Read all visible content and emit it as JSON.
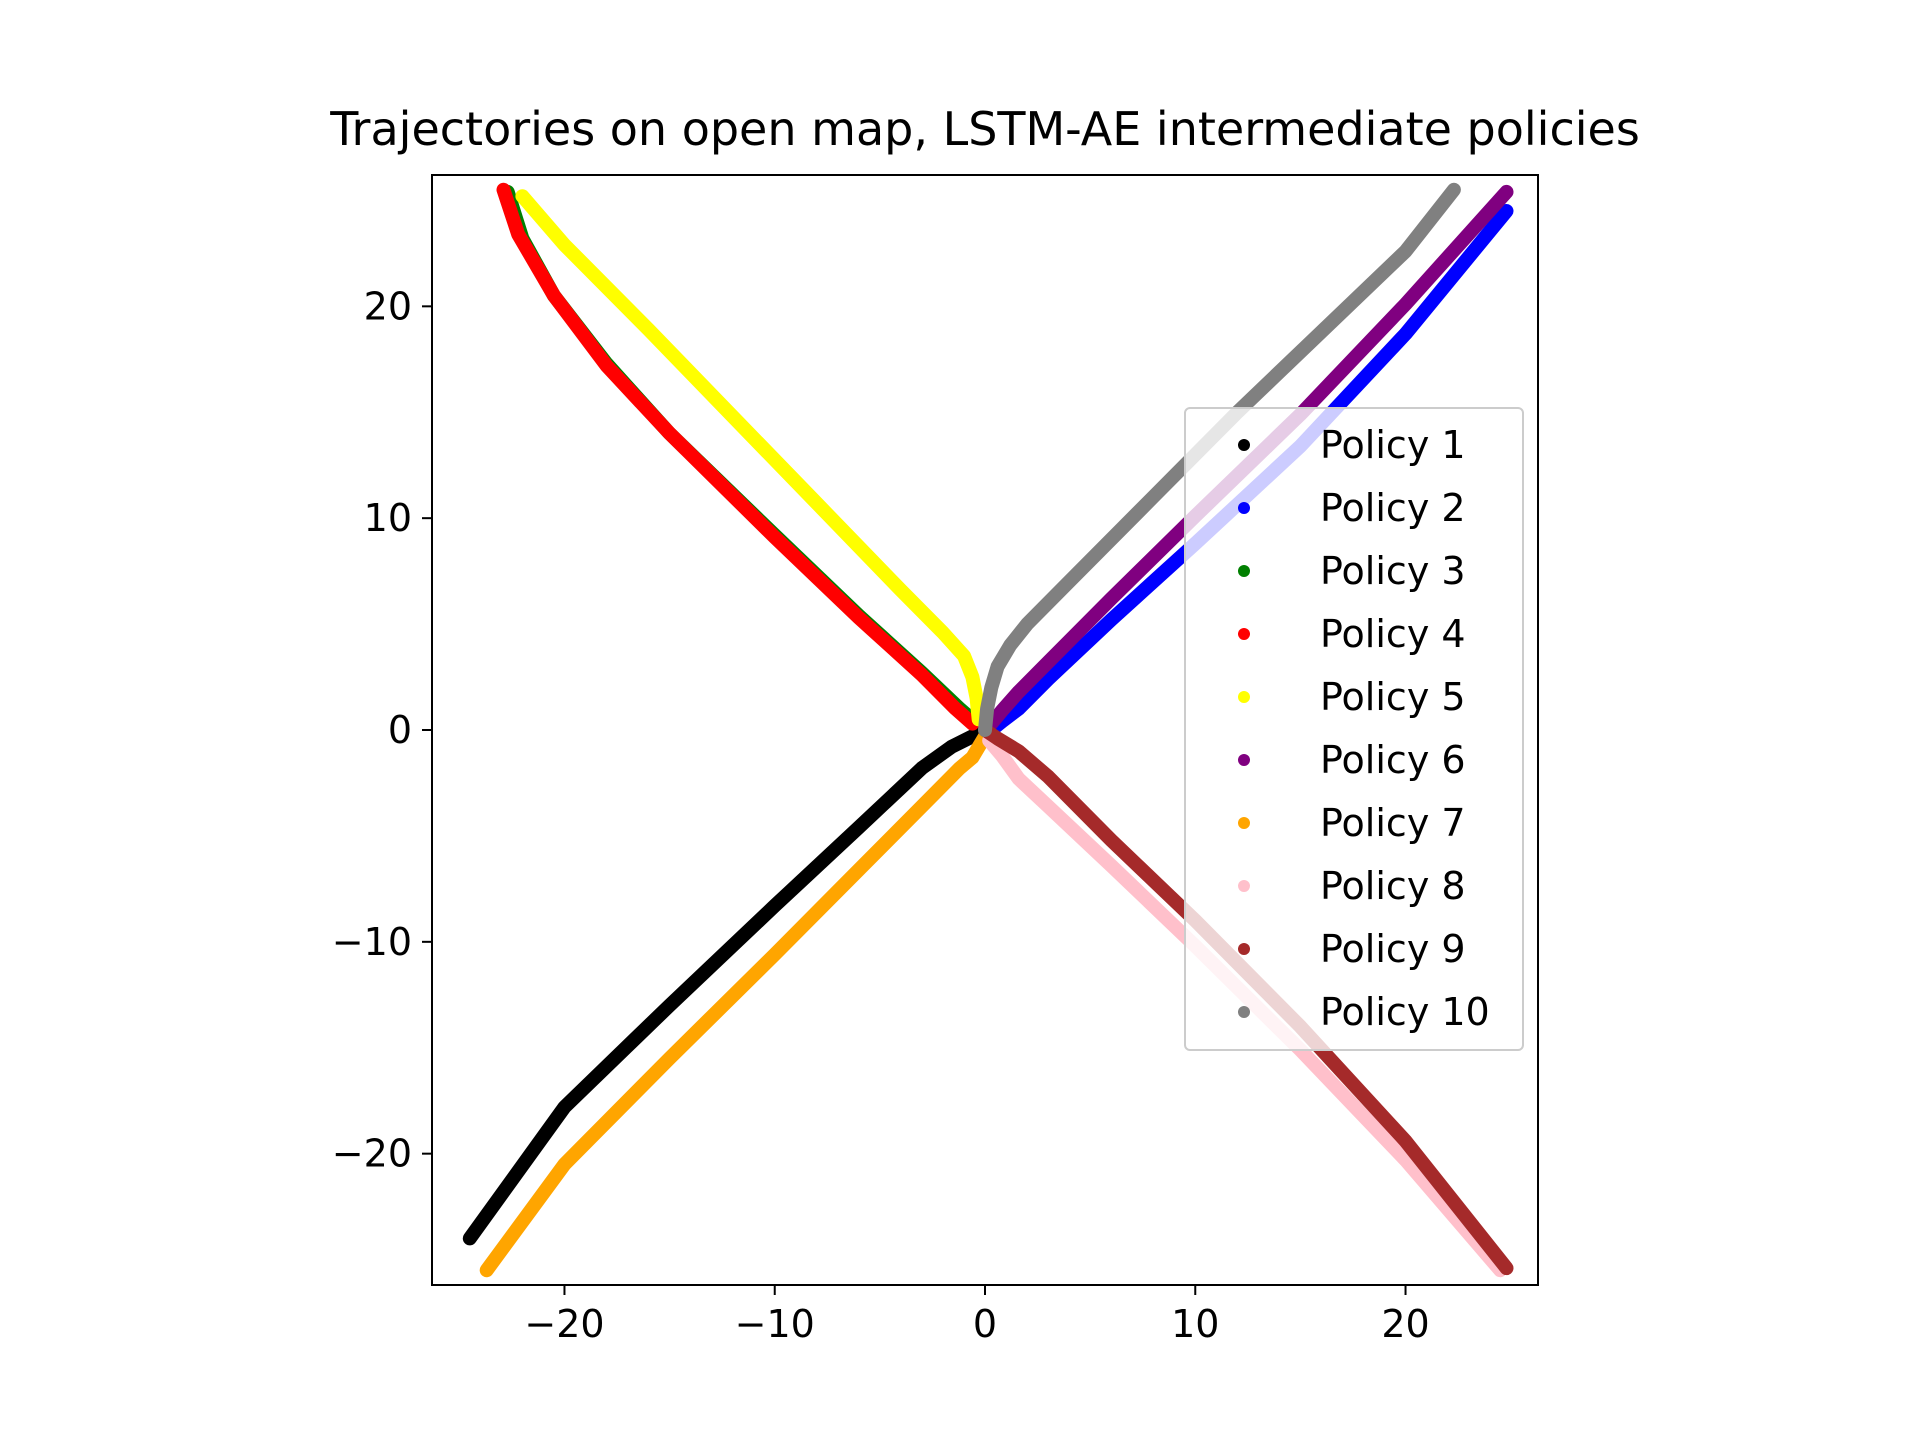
{
  "chart_data": {
    "type": "scatter",
    "title": "Trajectories on open map, LSTM-AE intermediate policies",
    "xlabel": "",
    "ylabel": "",
    "xlim": [
      -26.3,
      26.3
    ],
    "ylim": [
      -26.2,
      26.2
    ],
    "xticks": [
      -20,
      -10,
      0,
      10,
      20
    ],
    "yticks": [
      -20,
      -10,
      0,
      10,
      20
    ],
    "xtick_labels": [
      "−20",
      "−10",
      "0",
      "10",
      "20"
    ],
    "ytick_labels": [
      "−20",
      "−10",
      "0",
      "10",
      "20"
    ],
    "grid": false,
    "legend_position": "center-right",
    "series": [
      {
        "name": "Policy 1",
        "color": "#000000",
        "points": [
          [
            0,
            0
          ],
          [
            -0.6,
            -0.3
          ],
          [
            -1.6,
            -0.8
          ],
          [
            -3.0,
            -1.8
          ],
          [
            -6.0,
            -4.6
          ],
          [
            -10.0,
            -8.3
          ],
          [
            -15.0,
            -13.0
          ],
          [
            -20.0,
            -17.8
          ],
          [
            -24.5,
            -24.0
          ]
        ]
      },
      {
        "name": "Policy 2",
        "color": "#0000ff",
        "points": [
          [
            0.3,
            0
          ],
          [
            0.8,
            0.4
          ],
          [
            1.6,
            1.0
          ],
          [
            3.0,
            2.4
          ],
          [
            6.0,
            5.2
          ],
          [
            10.0,
            8.8
          ],
          [
            15.0,
            13.4
          ],
          [
            20.0,
            18.7
          ],
          [
            24.8,
            24.5
          ]
        ]
      },
      {
        "name": "Policy 3",
        "color": "#008000",
        "points": [
          [
            -0.5,
            0.4
          ],
          [
            -1.2,
            1.0
          ],
          [
            -3.0,
            2.7
          ],
          [
            -6.0,
            5.4
          ],
          [
            -10.0,
            9.2
          ],
          [
            -15.0,
            14.0
          ],
          [
            -18.0,
            17.3
          ],
          [
            -20.5,
            20.5
          ],
          [
            -22.0,
            23.2
          ],
          [
            -22.7,
            25.4
          ]
        ]
      },
      {
        "name": "Policy 4",
        "color": "#ff0000",
        "points": [
          [
            -0.6,
            0.3
          ],
          [
            -1.4,
            1.0
          ],
          [
            -3.0,
            2.6
          ],
          [
            -6.0,
            5.3
          ],
          [
            -10.0,
            9.1
          ],
          [
            -15.0,
            14.0
          ],
          [
            -18.0,
            17.2
          ],
          [
            -20.5,
            20.5
          ],
          [
            -22.2,
            23.4
          ],
          [
            -22.9,
            25.5
          ]
        ]
      },
      {
        "name": "Policy 5",
        "color": "#ffff00",
        "points": [
          [
            -0.3,
            0.5
          ],
          [
            -0.4,
            1.5
          ],
          [
            -0.6,
            2.5
          ],
          [
            -1.0,
            3.5
          ],
          [
            -2.0,
            4.6
          ],
          [
            -4.0,
            6.6
          ],
          [
            -8.0,
            10.7
          ],
          [
            -12.0,
            14.8
          ],
          [
            -16.0,
            18.9
          ],
          [
            -20.0,
            22.9
          ],
          [
            -22.0,
            25.2
          ]
        ]
      },
      {
        "name": "Policy 6",
        "color": "#800080",
        "points": [
          [
            0.3,
            0.3
          ],
          [
            0.8,
            0.9
          ],
          [
            1.6,
            1.8
          ],
          [
            3.0,
            3.2
          ],
          [
            6.0,
            6.2
          ],
          [
            10.0,
            10.1
          ],
          [
            15.0,
            14.9
          ],
          [
            20.0,
            20.1
          ],
          [
            24.8,
            25.4
          ]
        ]
      },
      {
        "name": "Policy 7",
        "color": "#ffa500",
        "points": [
          [
            0,
            -0.3
          ],
          [
            -0.3,
            -0.8
          ],
          [
            -0.6,
            -1.3
          ],
          [
            -1.2,
            -1.8
          ],
          [
            -3.0,
            -3.6
          ],
          [
            -6.0,
            -6.6
          ],
          [
            -10.0,
            -10.6
          ],
          [
            -15.0,
            -15.5
          ],
          [
            -20.0,
            -20.5
          ],
          [
            -23.7,
            -25.5
          ]
        ]
      },
      {
        "name": "Policy 8",
        "color": "#ffc0cb",
        "points": [
          [
            0.2,
            -0.5
          ],
          [
            0.8,
            -1.2
          ],
          [
            1.6,
            -2.3
          ],
          [
            3.0,
            -3.6
          ],
          [
            6.0,
            -6.4
          ],
          [
            10.0,
            -10.2
          ],
          [
            15.0,
            -15.1
          ],
          [
            20.0,
            -20.3
          ],
          [
            24.5,
            -25.5
          ]
        ]
      },
      {
        "name": "Policy 9",
        "color": "#a52a2a",
        "points": [
          [
            0,
            0
          ],
          [
            0.6,
            -0.4
          ],
          [
            1.6,
            -1.0
          ],
          [
            3.0,
            -2.2
          ],
          [
            6.0,
            -5.2
          ],
          [
            10.0,
            -9.0
          ],
          [
            15.0,
            -14.0
          ],
          [
            20.0,
            -19.4
          ],
          [
            24.8,
            -25.4
          ]
        ]
      },
      {
        "name": "Policy 10",
        "color": "#808080",
        "points": [
          [
            0,
            0
          ],
          [
            0.1,
            1.0
          ],
          [
            0.3,
            2.0
          ],
          [
            0.6,
            3.0
          ],
          [
            1.2,
            4.0
          ],
          [
            2.0,
            5.0
          ],
          [
            4.0,
            7.0
          ],
          [
            8.0,
            11.0
          ],
          [
            12.0,
            15.0
          ],
          [
            16.0,
            18.8
          ],
          [
            20.0,
            22.6
          ],
          [
            22.3,
            25.5
          ]
        ]
      }
    ]
  }
}
